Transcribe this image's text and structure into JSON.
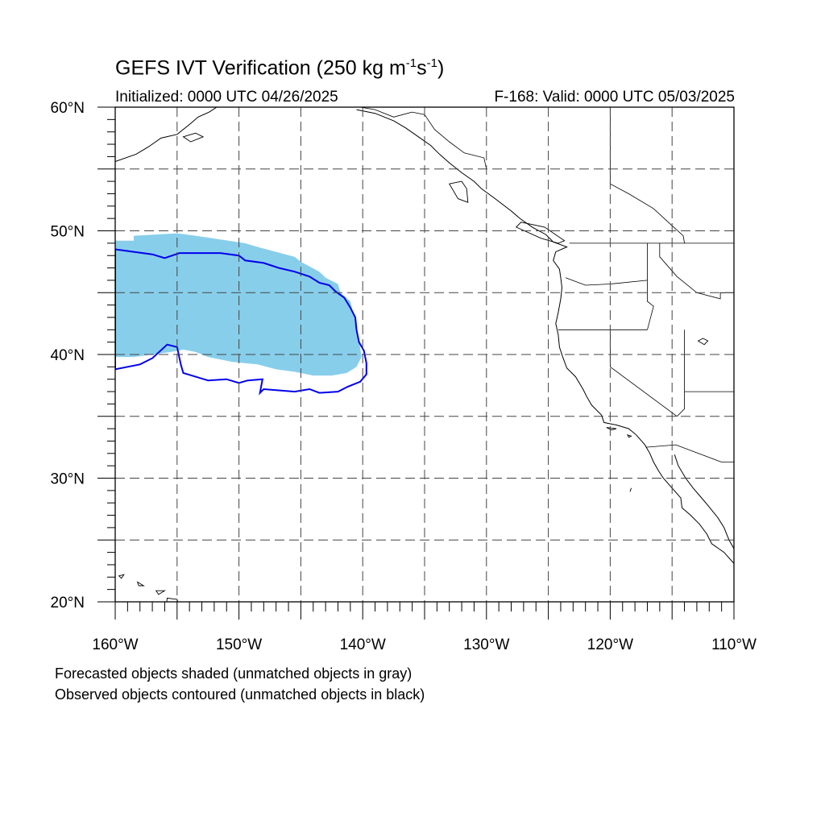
{
  "title": {
    "prefix": "GEFS IVT Verification (250 kg m",
    "exp1": "-1",
    "middle": "s",
    "exp2": "-1",
    "suffix": ")"
  },
  "initialized": "Initialized: 0000 UTC 04/26/2025",
  "valid": "F-168: Valid: 0000 UTC 05/03/2025",
  "map": {
    "lon_range": [
      -160,
      -110
    ],
    "lat_range": [
      20,
      60
    ],
    "lat_labels": [
      {
        "lat": 60,
        "text": "60°N"
      },
      {
        "lat": 50,
        "text": "50°N"
      },
      {
        "lat": 40,
        "text": "40°N"
      },
      {
        "lat": 30,
        "text": "30°N"
      },
      {
        "lat": 20,
        "text": "20°N"
      }
    ],
    "lon_labels": [
      {
        "lon": -160,
        "text": "160°W"
      },
      {
        "lon": -150,
        "text": "150°W"
      },
      {
        "lon": -140,
        "text": "140°W"
      },
      {
        "lon": -130,
        "text": "130°W"
      },
      {
        "lon": -120,
        "text": "120°W"
      },
      {
        "lon": -110,
        "text": "110°W"
      }
    ],
    "gridlines_every_deg": 5,
    "forecast_color": "#87ceeb",
    "observed_color": "#0000ee",
    "forecast_object": [
      [
        -160,
        49.2
      ],
      [
        -158.5,
        49.2
      ],
      [
        -158.5,
        49.6
      ],
      [
        -155,
        49.8
      ],
      [
        -153.5,
        49.6
      ],
      [
        -151.5,
        49.3
      ],
      [
        -149.5,
        49.0
      ],
      [
        -148.5,
        48.7
      ],
      [
        -147,
        48.3
      ],
      [
        -145.5,
        47.9
      ],
      [
        -145,
        47.5
      ],
      [
        -143.5,
        46.7
      ],
      [
        -143,
        46.2
      ],
      [
        -142,
        45.7
      ],
      [
        -141.8,
        45.0
      ],
      [
        -141,
        44.3
      ],
      [
        -140.8,
        43.4
      ],
      [
        -140.5,
        42.5
      ],
      [
        -140.4,
        41.5
      ],
      [
        -140.2,
        40.5
      ],
      [
        -140.1,
        39.8
      ],
      [
        -140.5,
        39.0
      ],
      [
        -141.3,
        38.5
      ],
      [
        -142.5,
        38.3
      ],
      [
        -144,
        38.3
      ],
      [
        -145.5,
        38.6
      ],
      [
        -147,
        38.8
      ],
      [
        -148.5,
        39.2
      ],
      [
        -150.5,
        39.4
      ],
      [
        -152.5,
        39.8
      ],
      [
        -153.5,
        40.2
      ],
      [
        -154.5,
        40.4
      ],
      [
        -155.5,
        40.2
      ],
      [
        -157,
        40.0
      ],
      [
        -158.5,
        39.8
      ],
      [
        -160,
        39.8
      ]
    ],
    "observed_object": [
      [
        -160,
        48.5
      ],
      [
        -157,
        48.1
      ],
      [
        -156,
        47.8
      ],
      [
        -154.8,
        48.2
      ],
      [
        -151.5,
        48.2
      ],
      [
        -150,
        48.0
      ],
      [
        -149.5,
        47.6
      ],
      [
        -148,
        47.4
      ],
      [
        -146.8,
        47.0
      ],
      [
        -145.5,
        46.7
      ],
      [
        -144.3,
        46.3
      ],
      [
        -143.5,
        45.8
      ],
      [
        -142.7,
        45.6
      ],
      [
        -142.2,
        45.1
      ],
      [
        -141.5,
        44.6
      ],
      [
        -141.0,
        43.8
      ],
      [
        -140.6,
        43.0
      ],
      [
        -140.5,
        42.0
      ],
      [
        -140.3,
        41.0
      ],
      [
        -139.9,
        40.3
      ],
      [
        -139.7,
        39.3
      ],
      [
        -139.7,
        38.4
      ],
      [
        -140.2,
        37.8
      ],
      [
        -141.2,
        37.4
      ],
      [
        -142.0,
        37.0
      ],
      [
        -143.5,
        36.9
      ],
      [
        -144.3,
        37.2
      ],
      [
        -145.5,
        37.0
      ],
      [
        -146.8,
        37.1
      ],
      [
        -148.0,
        37.2
      ],
      [
        -148.3,
        36.9
      ],
      [
        -148.1,
        38.0
      ],
      [
        -149.3,
        37.9
      ],
      [
        -150.0,
        37.7
      ],
      [
        -151.0,
        38.0
      ],
      [
        -152.5,
        37.9
      ],
      [
        -154.5,
        38.5
      ],
      [
        -154.7,
        39.2
      ],
      [
        -155.0,
        40.6
      ],
      [
        -155.8,
        40.8
      ],
      [
        -157.0,
        39.7
      ],
      [
        -158.0,
        39.2
      ],
      [
        -160,
        38.8
      ]
    ],
    "coastline": [
      [
        -140.5,
        59.8
      ],
      [
        -139.0,
        59.5
      ],
      [
        -137.5,
        58.9
      ],
      [
        -136.5,
        58.3
      ],
      [
        -135.5,
        57.6
      ],
      [
        -134.5,
        56.9
      ],
      [
        -133.8,
        56.2
      ],
      [
        -133.0,
        55.5
      ],
      [
        -132.0,
        54.7
      ],
      [
        -131.0,
        54.0
      ],
      [
        -130.4,
        53.4
      ],
      [
        -129.3,
        52.6
      ],
      [
        -128.0,
        51.6
      ],
      [
        -127.3,
        51.0
      ],
      [
        -126.3,
        50.3
      ],
      [
        -125.2,
        49.7
      ],
      [
        -124.6,
        49.1
      ],
      [
        -123.5,
        48.7
      ],
      [
        -124.4,
        48.3
      ],
      [
        -124.6,
        47.6
      ],
      [
        -124.1,
        46.9
      ],
      [
        -124.0,
        46.2
      ],
      [
        -123.9,
        45.4
      ],
      [
        -124.0,
        44.5
      ],
      [
        -124.2,
        43.4
      ],
      [
        -124.4,
        42.5
      ],
      [
        -124.2,
        41.6
      ],
      [
        -124.1,
        40.6
      ],
      [
        -123.8,
        39.7
      ],
      [
        -123.5,
        38.9
      ],
      [
        -122.8,
        38.2
      ],
      [
        -122.5,
        37.7
      ],
      [
        -122.2,
        37.2
      ],
      [
        -121.9,
        36.6
      ],
      [
        -121.5,
        35.9
      ],
      [
        -120.7,
        35.1
      ],
      [
        -120.5,
        34.5
      ],
      [
        -119.5,
        34.3
      ],
      [
        -118.5,
        34.0
      ],
      [
        -117.9,
        33.5
      ],
      [
        -117.2,
        32.7
      ],
      [
        -116.8,
        32.0
      ],
      [
        -116.5,
        31.3
      ],
      [
        -116.1,
        30.6
      ],
      [
        -115.7,
        30.0
      ],
      [
        -115.0,
        29.2
      ],
      [
        -114.3,
        28.4
      ],
      [
        -114.2,
        27.6
      ],
      [
        -113.5,
        27.0
      ],
      [
        -112.8,
        26.3
      ],
      [
        -112.2,
        25.5
      ],
      [
        -111.8,
        24.7
      ],
      [
        -110.8,
        24.0
      ],
      [
        -110.0,
        23.1
      ]
    ],
    "gulf_coast": [
      [
        -114.8,
        31.9
      ],
      [
        -114.5,
        31.0
      ],
      [
        -113.9,
        30.0
      ],
      [
        -113.3,
        29.2
      ],
      [
        -112.7,
        28.5
      ],
      [
        -112.1,
        27.8
      ],
      [
        -111.3,
        26.8
      ],
      [
        -110.8,
        26.0
      ],
      [
        -110.4,
        25.0
      ],
      [
        -110.0,
        24.3
      ]
    ],
    "borders": [
      [
        [
          -123.3,
          49.0
        ],
        [
          -110,
          49.0
        ]
      ],
      [
        [
          -124.2,
          42.0
        ],
        [
          -117.0,
          42.0
        ]
      ],
      [
        [
          -120.0,
          42.0
        ],
        [
          -120.0,
          39.0
        ],
        [
          -114.6,
          35.0
        ]
      ],
      [
        [
          -117.0,
          49.0
        ],
        [
          -117.0,
          44.3
        ],
        [
          -116.5,
          43.9
        ],
        [
          -117.0,
          42.0
        ]
      ],
      [
        [
          -116.0,
          49.0
        ],
        [
          -116.0,
          47.9
        ],
        [
          -114.6,
          46.3
        ],
        [
          -113.0,
          45.0
        ],
        [
          -111.1,
          44.5
        ],
        [
          -111.1,
          45.0
        ],
        [
          -110,
          45.0
        ]
      ],
      [
        [
          -114.0,
          42.0
        ],
        [
          -114.0,
          35.6
        ],
        [
          -114.6,
          35.0
        ]
      ],
      [
        [
          -114.0,
          37.0
        ],
        [
          -110,
          37.0
        ]
      ],
      [
        [
          -117.1,
          32.5
        ],
        [
          -114.7,
          32.7
        ],
        [
          -111.0,
          31.3
        ],
        [
          -110,
          31.3
        ]
      ],
      [
        [
          -123.6,
          46.2
        ],
        [
          -122.0,
          45.6
        ],
        [
          -120.0,
          45.7
        ],
        [
          -117.0,
          46.0
        ]
      ],
      [
        [
          -140.2,
          60.0
        ],
        [
          -139.0,
          59.8
        ],
        [
          -137.5,
          59.2
        ],
        [
          -136.0,
          59.6
        ],
        [
          -135.0,
          59.4
        ],
        [
          -134.2,
          58.2
        ],
        [
          -133.0,
          57.2
        ],
        [
          -131.8,
          56.3
        ],
        [
          -130.2,
          55.9
        ],
        [
          -130.0,
          55.0
        ]
      ],
      [
        [
          -120.0,
          60.0
        ],
        [
          -120.0,
          53.8
        ],
        [
          -118.5,
          53.0
        ],
        [
          -116.5,
          51.8
        ],
        [
          -115.2,
          50.6
        ],
        [
          -114.1,
          49.6
        ],
        [
          -114.0,
          49.0
        ]
      ]
    ],
    "alaska_coast": [
      [
        -160,
        55.6
      ],
      [
        -158.3,
        56.2
      ],
      [
        -157.3,
        56.8
      ],
      [
        -156.3,
        57.5
      ],
      [
        -155.0,
        57.8
      ],
      [
        -154.0,
        58.6
      ],
      [
        -153.3,
        59.2
      ],
      [
        -152.4,
        59.6
      ],
      [
        -151.8,
        60.0
      ]
    ],
    "islands": [
      [
        [
          -155.0,
          20.2
        ],
        [
          -155.8,
          20.3
        ],
        [
          -155.9,
          19.5
        ],
        [
          -155.4,
          19.0
        ],
        [
          -154.8,
          19.5
        ]
      ],
      [
        [
          -156.0,
          20.9
        ],
        [
          -156.7,
          20.9
        ],
        [
          -156.5,
          20.6
        ]
      ],
      [
        [
          -157.7,
          21.3
        ],
        [
          -158.2,
          21.6
        ],
        [
          -158.1,
          21.3
        ]
      ],
      [
        [
          -159.3,
          22.2
        ],
        [
          -159.7,
          22.1
        ],
        [
          -159.5,
          21.9
        ]
      ],
      [
        [
          -153.5,
          57.9
        ],
        [
          -154.5,
          57.6
        ],
        [
          -153.9,
          57.2
        ],
        [
          -152.9,
          57.6
        ]
      ],
      [
        [
          -132.0,
          54.0
        ],
        [
          -133.0,
          53.8
        ],
        [
          -132.3,
          52.6
        ],
        [
          -131.5,
          52.3
        ],
        [
          -131.6,
          53.4
        ]
      ],
      [
        [
          -124.2,
          49.0
        ],
        [
          -125.6,
          49.4
        ],
        [
          -127.6,
          50.3
        ],
        [
          -127.2,
          50.7
        ],
        [
          -125.3,
          50.3
        ],
        [
          -123.7,
          49.2
        ]
      ],
      [
        [
          -118.3,
          33.4
        ],
        [
          -118.6,
          33.5
        ],
        [
          -118.5,
          33.3
        ]
      ],
      [
        [
          -119.5,
          34.0
        ],
        [
          -120.3,
          34.1
        ],
        [
          -119.9,
          33.9
        ]
      ],
      [
        [
          -118.3,
          29.2
        ],
        [
          -118.4,
          28.9
        ]
      ],
      [
        [
          -112.5,
          41.3
        ],
        [
          -112.9,
          41.1
        ],
        [
          -112.4,
          40.8
        ],
        [
          -112.1,
          41.1
        ]
      ]
    ]
  },
  "notes": {
    "forecast": "Forecasted objects shaded (unmatched objects in gray)",
    "observed": "Observed objects contoured (unmatched objects in black)"
  }
}
